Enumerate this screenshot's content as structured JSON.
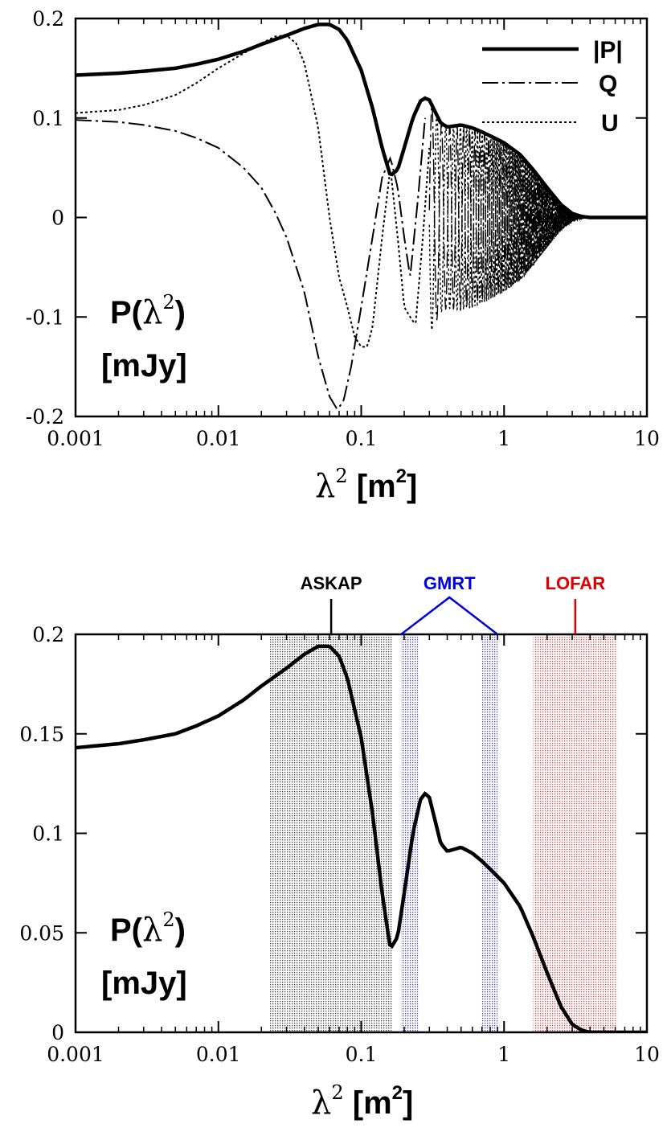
{
  "chart_data": [
    {
      "type": "line",
      "xscale": "log",
      "xlim": [
        0.001,
        10
      ],
      "ylim": [
        -0.2,
        0.2
      ],
      "x_ticks": [
        "0.001",
        "0.01",
        "0.1",
        "1",
        "10"
      ],
      "y_ticks": [
        "0.2",
        "0.1",
        "0",
        "-0.1",
        "-0.2"
      ],
      "xlabel": {
        "symbol": "λ",
        "sup": "2",
        "unit": " [m",
        "unit_sup": "2",
        "close": "]"
      },
      "ylabel": {
        "line1": "P(",
        "symbol": "λ",
        "sup": "2",
        "close": ")",
        "line2": "[mJy]"
      },
      "legend": {
        "placement": "top-right",
        "entries": [
          "|P|",
          "Q",
          "U"
        ]
      },
      "series": [
        {
          "name": "|P|",
          "style": "solid-thick",
          "x": [
            0.001,
            0.002,
            0.003,
            0.005,
            0.007,
            0.01,
            0.015,
            0.02,
            0.03,
            0.04,
            0.05,
            0.06,
            0.07,
            0.08,
            0.1,
            0.12,
            0.14,
            0.16,
            0.18,
            0.2,
            0.23,
            0.26,
            0.28,
            0.3,
            0.33,
            0.36,
            0.4,
            0.45,
            0.5,
            0.6,
            0.7,
            0.8,
            1.0,
            1.3,
            1.6,
            2.0,
            2.5,
            3.0,
            3.5,
            4.0,
            5.0,
            7.0,
            10.0
          ],
          "y": [
            0.143,
            0.145,
            0.147,
            0.15,
            0.154,
            0.159,
            0.167,
            0.174,
            0.183,
            0.19,
            0.194,
            0.194,
            0.189,
            0.178,
            0.148,
            0.11,
            0.07,
            0.042,
            0.048,
            0.07,
            0.1,
            0.117,
            0.12,
            0.118,
            0.106,
            0.095,
            0.091,
            0.092,
            0.093,
            0.09,
            0.086,
            0.082,
            0.075,
            0.063,
            0.048,
            0.03,
            0.013,
            0.004,
            0.001,
            0.0,
            0.0,
            0.0,
            0.0
          ]
        },
        {
          "name": "Q",
          "style": "dash-dot",
          "x": [
            0.001,
            0.002,
            0.003,
            0.005,
            0.007,
            0.01,
            0.015,
            0.02,
            0.025,
            0.03,
            0.04,
            0.05,
            0.06,
            0.068,
            0.075,
            0.085,
            0.1,
            0.12,
            0.14,
            0.16,
            0.18,
            0.2,
            0.22,
            0.25,
            0.28
          ],
          "y": [
            0.098,
            0.096,
            0.093,
            0.087,
            0.08,
            0.07,
            0.05,
            0.03,
            0.005,
            -0.02,
            -0.075,
            -0.14,
            -0.18,
            -0.193,
            -0.185,
            -0.15,
            -0.09,
            -0.02,
            0.04,
            0.06,
            0.03,
            -0.02,
            -0.06,
            0.02,
            0.1
          ]
        },
        {
          "name": "U",
          "style": "dotted",
          "x": [
            0.001,
            0.002,
            0.003,
            0.005,
            0.007,
            0.01,
            0.015,
            0.02,
            0.025,
            0.03,
            0.035,
            0.04,
            0.05,
            0.06,
            0.07,
            0.08,
            0.09,
            0.1,
            0.11,
            0.12,
            0.14,
            0.16,
            0.18,
            0.2,
            0.22,
            0.24,
            0.27,
            0.3
          ],
          "y": [
            0.105,
            0.108,
            0.113,
            0.123,
            0.135,
            0.15,
            0.165,
            0.175,
            0.182,
            0.183,
            0.175,
            0.155,
            0.09,
            0.0,
            -0.06,
            -0.09,
            -0.12,
            -0.13,
            -0.13,
            -0.11,
            -0.02,
            0.05,
            -0.02,
            -0.09,
            -0.1,
            -0.108,
            -0.02,
            0.07
          ]
        }
      ],
      "oscillation": {
        "x_start": 0.3,
        "x_end": 4.0
      }
    },
    {
      "type": "line",
      "xscale": "log",
      "xlim": [
        0.001,
        10
      ],
      "ylim": [
        0,
        0.2
      ],
      "x_ticks": [
        "0.001",
        "0.01",
        "0.1",
        "1",
        "10"
      ],
      "y_ticks": [
        "0.2",
        "0.15",
        "0.1",
        "0.05",
        "0"
      ],
      "xlabel": {
        "symbol": "λ",
        "sup": "2",
        "unit": " [m",
        "unit_sup": "2",
        "close": "]"
      },
      "ylabel": {
        "line1": "P(",
        "symbol": "λ",
        "sup": "2",
        "close": ")",
        "line2": "[mJy]"
      },
      "series": [
        {
          "name": "|P|",
          "style": "solid-thick",
          "x": [
            0.001,
            0.002,
            0.003,
            0.005,
            0.007,
            0.01,
            0.015,
            0.02,
            0.03,
            0.04,
            0.05,
            0.06,
            0.07,
            0.08,
            0.1,
            0.12,
            0.14,
            0.16,
            0.18,
            0.2,
            0.23,
            0.26,
            0.28,
            0.3,
            0.33,
            0.36,
            0.4,
            0.45,
            0.5,
            0.6,
            0.7,
            0.8,
            1.0,
            1.3,
            1.6,
            2.0,
            2.5,
            3.0,
            3.5,
            4.0,
            5.0,
            7.0,
            10.0
          ],
          "y": [
            0.143,
            0.145,
            0.147,
            0.15,
            0.154,
            0.159,
            0.167,
            0.174,
            0.183,
            0.19,
            0.194,
            0.194,
            0.189,
            0.178,
            0.148,
            0.11,
            0.07,
            0.042,
            0.048,
            0.07,
            0.1,
            0.117,
            0.12,
            0.118,
            0.106,
            0.095,
            0.091,
            0.092,
            0.093,
            0.09,
            0.086,
            0.082,
            0.075,
            0.063,
            0.048,
            0.03,
            0.013,
            0.004,
            0.001,
            0.0,
            0.0,
            0.0,
            0.0
          ]
        }
      ],
      "bands": [
        {
          "label": "ASKAP",
          "color": "#000000",
          "ranges": [
            [
              0.023,
              0.165
            ]
          ]
        },
        {
          "label": "GMRT",
          "color": "#0000dd",
          "ranges": [
            [
              0.19,
              0.25
            ],
            [
              0.69,
              0.9
            ]
          ]
        },
        {
          "label": "LOFAR",
          "color": "#dd0000",
          "ranges": [
            [
              1.6,
              6.2
            ]
          ]
        }
      ]
    }
  ]
}
